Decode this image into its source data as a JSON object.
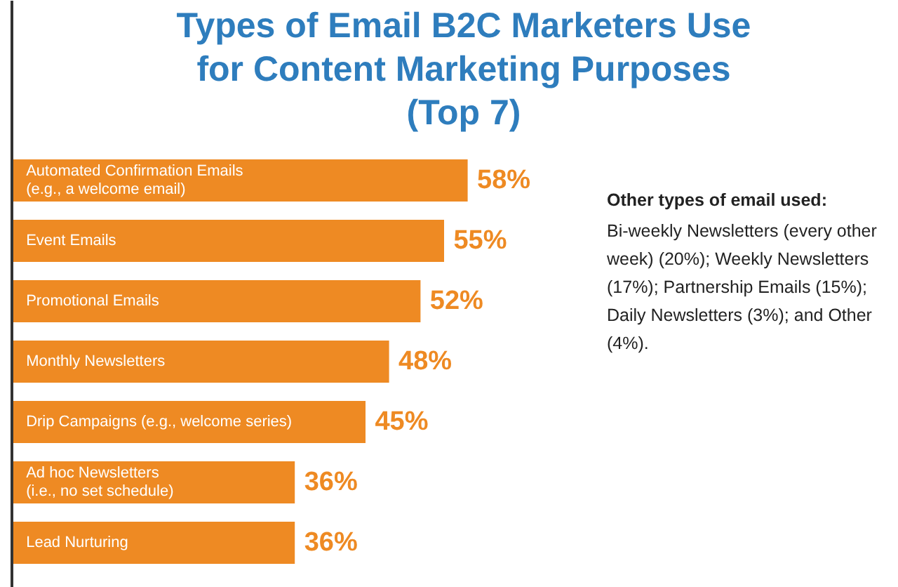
{
  "chart_data": {
    "type": "bar",
    "orientation": "horizontal",
    "title": "Types of Email B2C Marketers Use for Content Marketing Purposes (Top 7)",
    "categories": [
      "Automated Confirmation Emails (e.g., a welcome email)",
      "Event Emails",
      "Promotional Emails",
      "Monthly Newsletters",
      "Drip Campaigns (e.g., welcome series)",
      "Ad hoc Newsletters (i.e., no set schedule)",
      "Lead Nurturing"
    ],
    "values": [
      58,
      55,
      52,
      48,
      45,
      36,
      36
    ],
    "value_labels": [
      "58%",
      "55%",
      "52%",
      "48%",
      "45%",
      "36%",
      "36%"
    ],
    "color": "#ee8a23",
    "annotations": [
      "Other types of email used:",
      "Bi-weekly Newsletters (every other week) (20%); Weekly Newsletters (17%); Partnership Emails (15%); Daily Newsletters (3%); and Other (4%)."
    ]
  }
}
